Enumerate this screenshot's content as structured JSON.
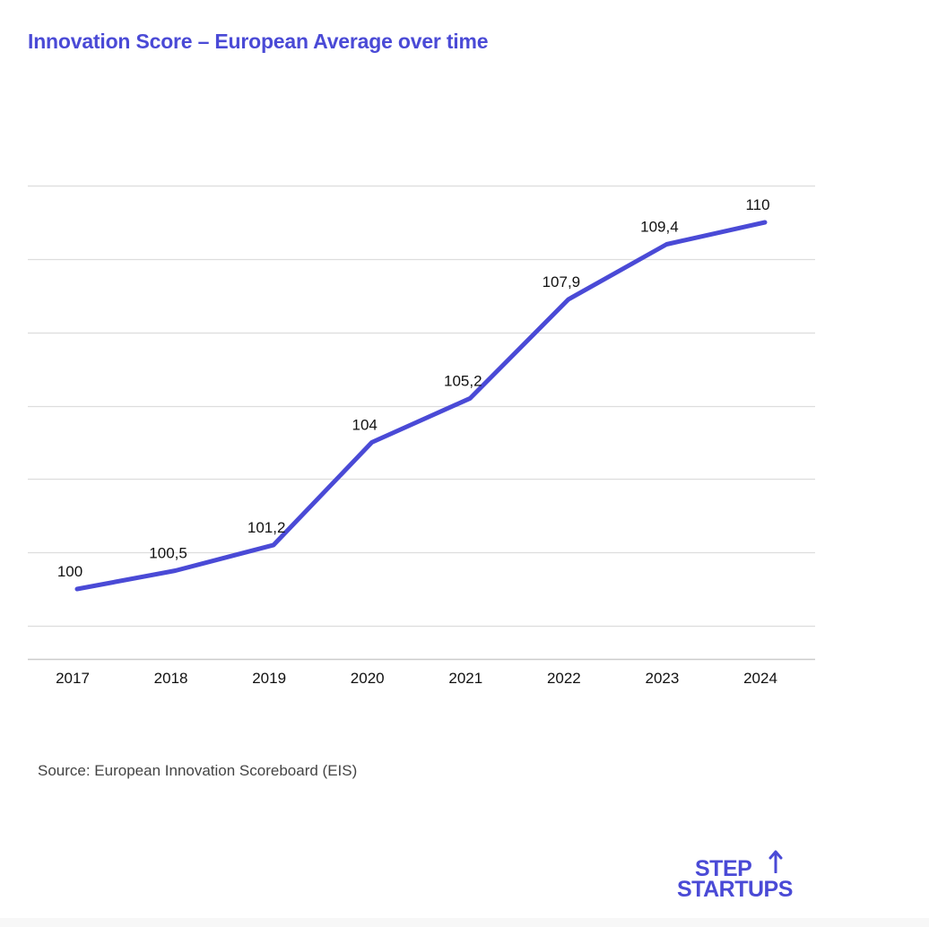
{
  "chart_data": {
    "type": "line",
    "title": "Innovation Score – European Average over time",
    "categories": [
      "2017",
      "2018",
      "2019",
      "2020",
      "2021",
      "2022",
      "2023",
      "2024"
    ],
    "series": [
      {
        "values": [
          100,
          100.5,
          101.2,
          104,
          105.2,
          107.9,
          109.4,
          110
        ],
        "data_labels": [
          "100",
          "100,5",
          "101,2",
          "104",
          "105,2",
          "107,9",
          "109,4",
          "110"
        ],
        "color": "#4a4ad6"
      }
    ],
    "xlabel": "",
    "ylabel": "",
    "ylim": [
      98,
      112
    ],
    "y_gridlines": [
      99,
      101,
      103,
      105,
      107,
      109,
      111
    ],
    "y_tick_labels_shown": false,
    "grid": true,
    "legend": "none"
  },
  "source": "Source: European Innovation Scoreboard (EIS)",
  "logo": {
    "line1": "STEP",
    "line2": "STARTUPS",
    "arrow_icon": "up-arrow-icon"
  },
  "colors": {
    "accent": "#4a4ad6",
    "grid": "#dddddd",
    "text": "#111111",
    "muted": "#444444"
  }
}
